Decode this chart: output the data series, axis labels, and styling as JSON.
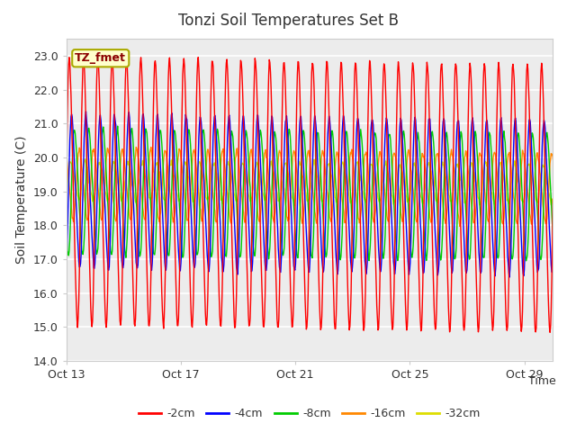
{
  "title": "Tonzi Soil Temperatures Set B",
  "xlabel": "Time",
  "ylabel": "Soil Temperature (C)",
  "ylim": [
    14.0,
    23.5
  ],
  "yticks": [
    14.0,
    15.0,
    16.0,
    17.0,
    18.0,
    19.0,
    20.0,
    21.0,
    22.0,
    23.0
  ],
  "xtick_labels": [
    "Oct 13",
    "Oct 17",
    "Oct 21",
    "Oct 25",
    "Oct 29"
  ],
  "xtick_positions": [
    0,
    4,
    8,
    12,
    16
  ],
  "annotation": "TZ_fmet",
  "series_colors": {
    "-2cm": "#FF0000",
    "-4cm": "#0000FF",
    "-8cm": "#00CC00",
    "-16cm": "#FF8800",
    "-32cm": "#DDDD00"
  },
  "legend_order": [
    "-2cm",
    "-4cm",
    "-8cm",
    "-16cm",
    "-32cm"
  ],
  "plot_bg_color": "#ECECEC",
  "grid_color": "#FFFFFF",
  "n_days": 17,
  "points_per_day": 48,
  "cycles_per_day": 2,
  "depth_configs": {
    "-2cm": {
      "mean": 19.0,
      "amp": 3.8,
      "phase": 0.0,
      "trend": -0.012
    },
    "-4cm": {
      "mean": 19.0,
      "amp": 2.2,
      "phase": 0.08,
      "trend": -0.01
    },
    "-8cm": {
      "mean": 19.0,
      "amp": 1.8,
      "phase": 0.18,
      "trend": -0.01
    },
    "-16cm": {
      "mean": 19.2,
      "amp": 1.0,
      "phase": 0.35,
      "trend": -0.006
    },
    "-32cm": {
      "mean": 19.3,
      "amp": 0.55,
      "phase": 0.55,
      "trend": -0.004
    }
  }
}
